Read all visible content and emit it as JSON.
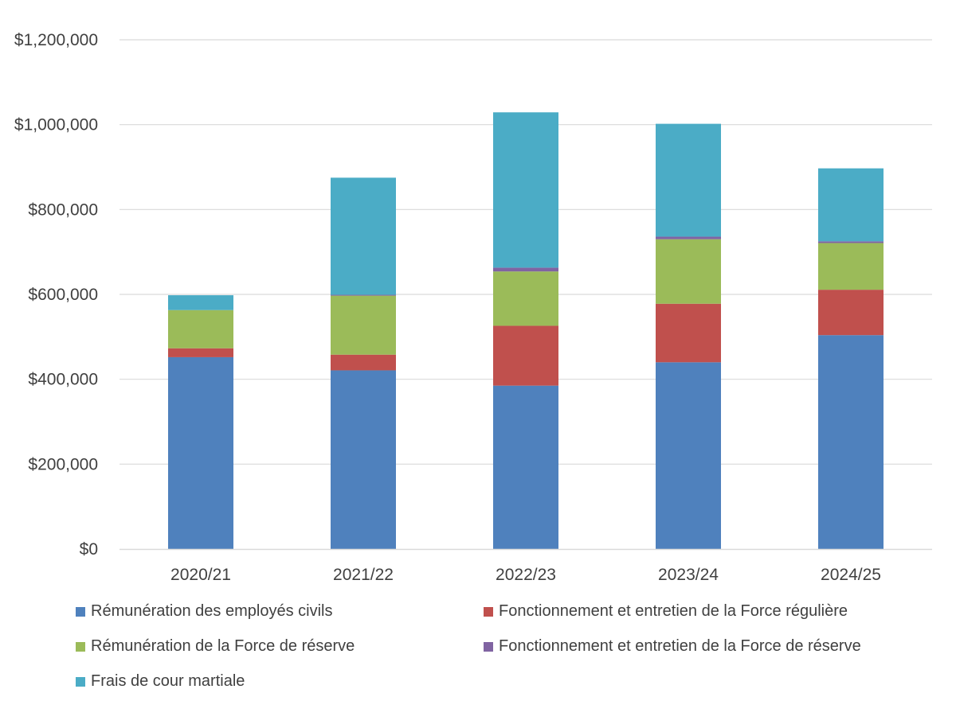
{
  "chart_data": {
    "type": "bar",
    "stacked": true,
    "title": "",
    "xlabel": "",
    "ylabel": "",
    "categories": [
      "2020/21",
      "2021/22",
      "2022/23",
      "2023/24",
      "2024/25"
    ],
    "ylim": [
      0,
      1200000
    ],
    "yticks": [
      0,
      200000,
      400000,
      600000,
      800000,
      1000000,
      1200000
    ],
    "ytick_labels": [
      "$0",
      "$200,000",
      "$400,000",
      "$600,000",
      "$800,000",
      "$1,000,000",
      "$1,200,000"
    ],
    "grid": true,
    "legend_position": "bottom",
    "series": [
      {
        "name": "Rémunération des employés civils",
        "color": "#4F81BD",
        "values": [
          452000,
          421000,
          385000,
          440000,
          504000
        ]
      },
      {
        "name": "Fonctionnement et entretien de la Force régulière",
        "color": "#C0504D",
        "values": [
          21000,
          37000,
          141000,
          138000,
          107000
        ]
      },
      {
        "name": "Rémunération de la Force de réserve",
        "color": "#9BBB59",
        "values": [
          90000,
          139000,
          128000,
          152000,
          110000
        ]
      },
      {
        "name": "Fonctionnement et entretien de la Force de réserve",
        "color": "#8064A2",
        "values": [
          0,
          2000,
          9000,
          6000,
          4000
        ]
      },
      {
        "name": "Frais de cour martiale",
        "color": "#4BACC6",
        "values": [
          35000,
          276000,
          366000,
          266000,
          172000
        ]
      }
    ]
  }
}
